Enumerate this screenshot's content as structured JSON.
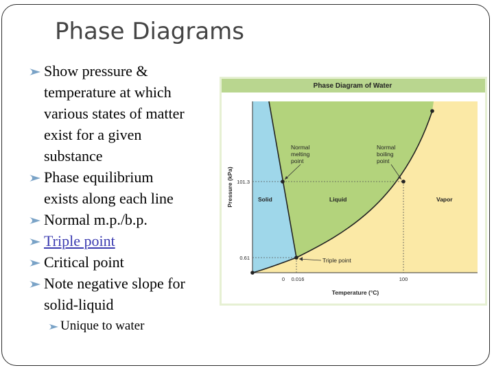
{
  "slide": {
    "title": "Phase Diagrams",
    "bullets": [
      {
        "lines": [
          "Show pressure &",
          "temperature at which",
          "various states of matter",
          "exist for a given",
          "substance"
        ]
      },
      {
        "lines": [
          "Phase equilibrium",
          "exists along each line"
        ]
      },
      {
        "lines": [
          "Normal m.p./b.p."
        ]
      },
      {
        "lines": [
          "Triple point"
        ],
        "link": true
      },
      {
        "lines": [
          "Critical point"
        ]
      },
      {
        "lines": [
          "Note negative slope for",
          "solid-liquid"
        ]
      }
    ],
    "subbullet": "Unique to water"
  },
  "diagram": {
    "title": "Phase Diagram of Water",
    "regions": {
      "solid": "Solid",
      "liquid": "Liquid",
      "vapor": "Vapor"
    },
    "annotations": {
      "melting": [
        "Normal",
        "melting",
        "point"
      ],
      "boiling": [
        "Normal",
        "boiling",
        "point"
      ],
      "triple": "Triple point"
    },
    "axes": {
      "ylabel": "Pressure (kPa)",
      "xlabel": "Temperature (°C)",
      "yticks": [
        "101.3",
        "0.61"
      ],
      "xticks": [
        "0",
        "0.016",
        "100"
      ]
    },
    "colors": {
      "solid": "#9fd7ea",
      "liquid": "#b3d37c",
      "vapor": "#fbe9a6",
      "header": "#b9d68f",
      "border": "#c8e0a0"
    }
  }
}
